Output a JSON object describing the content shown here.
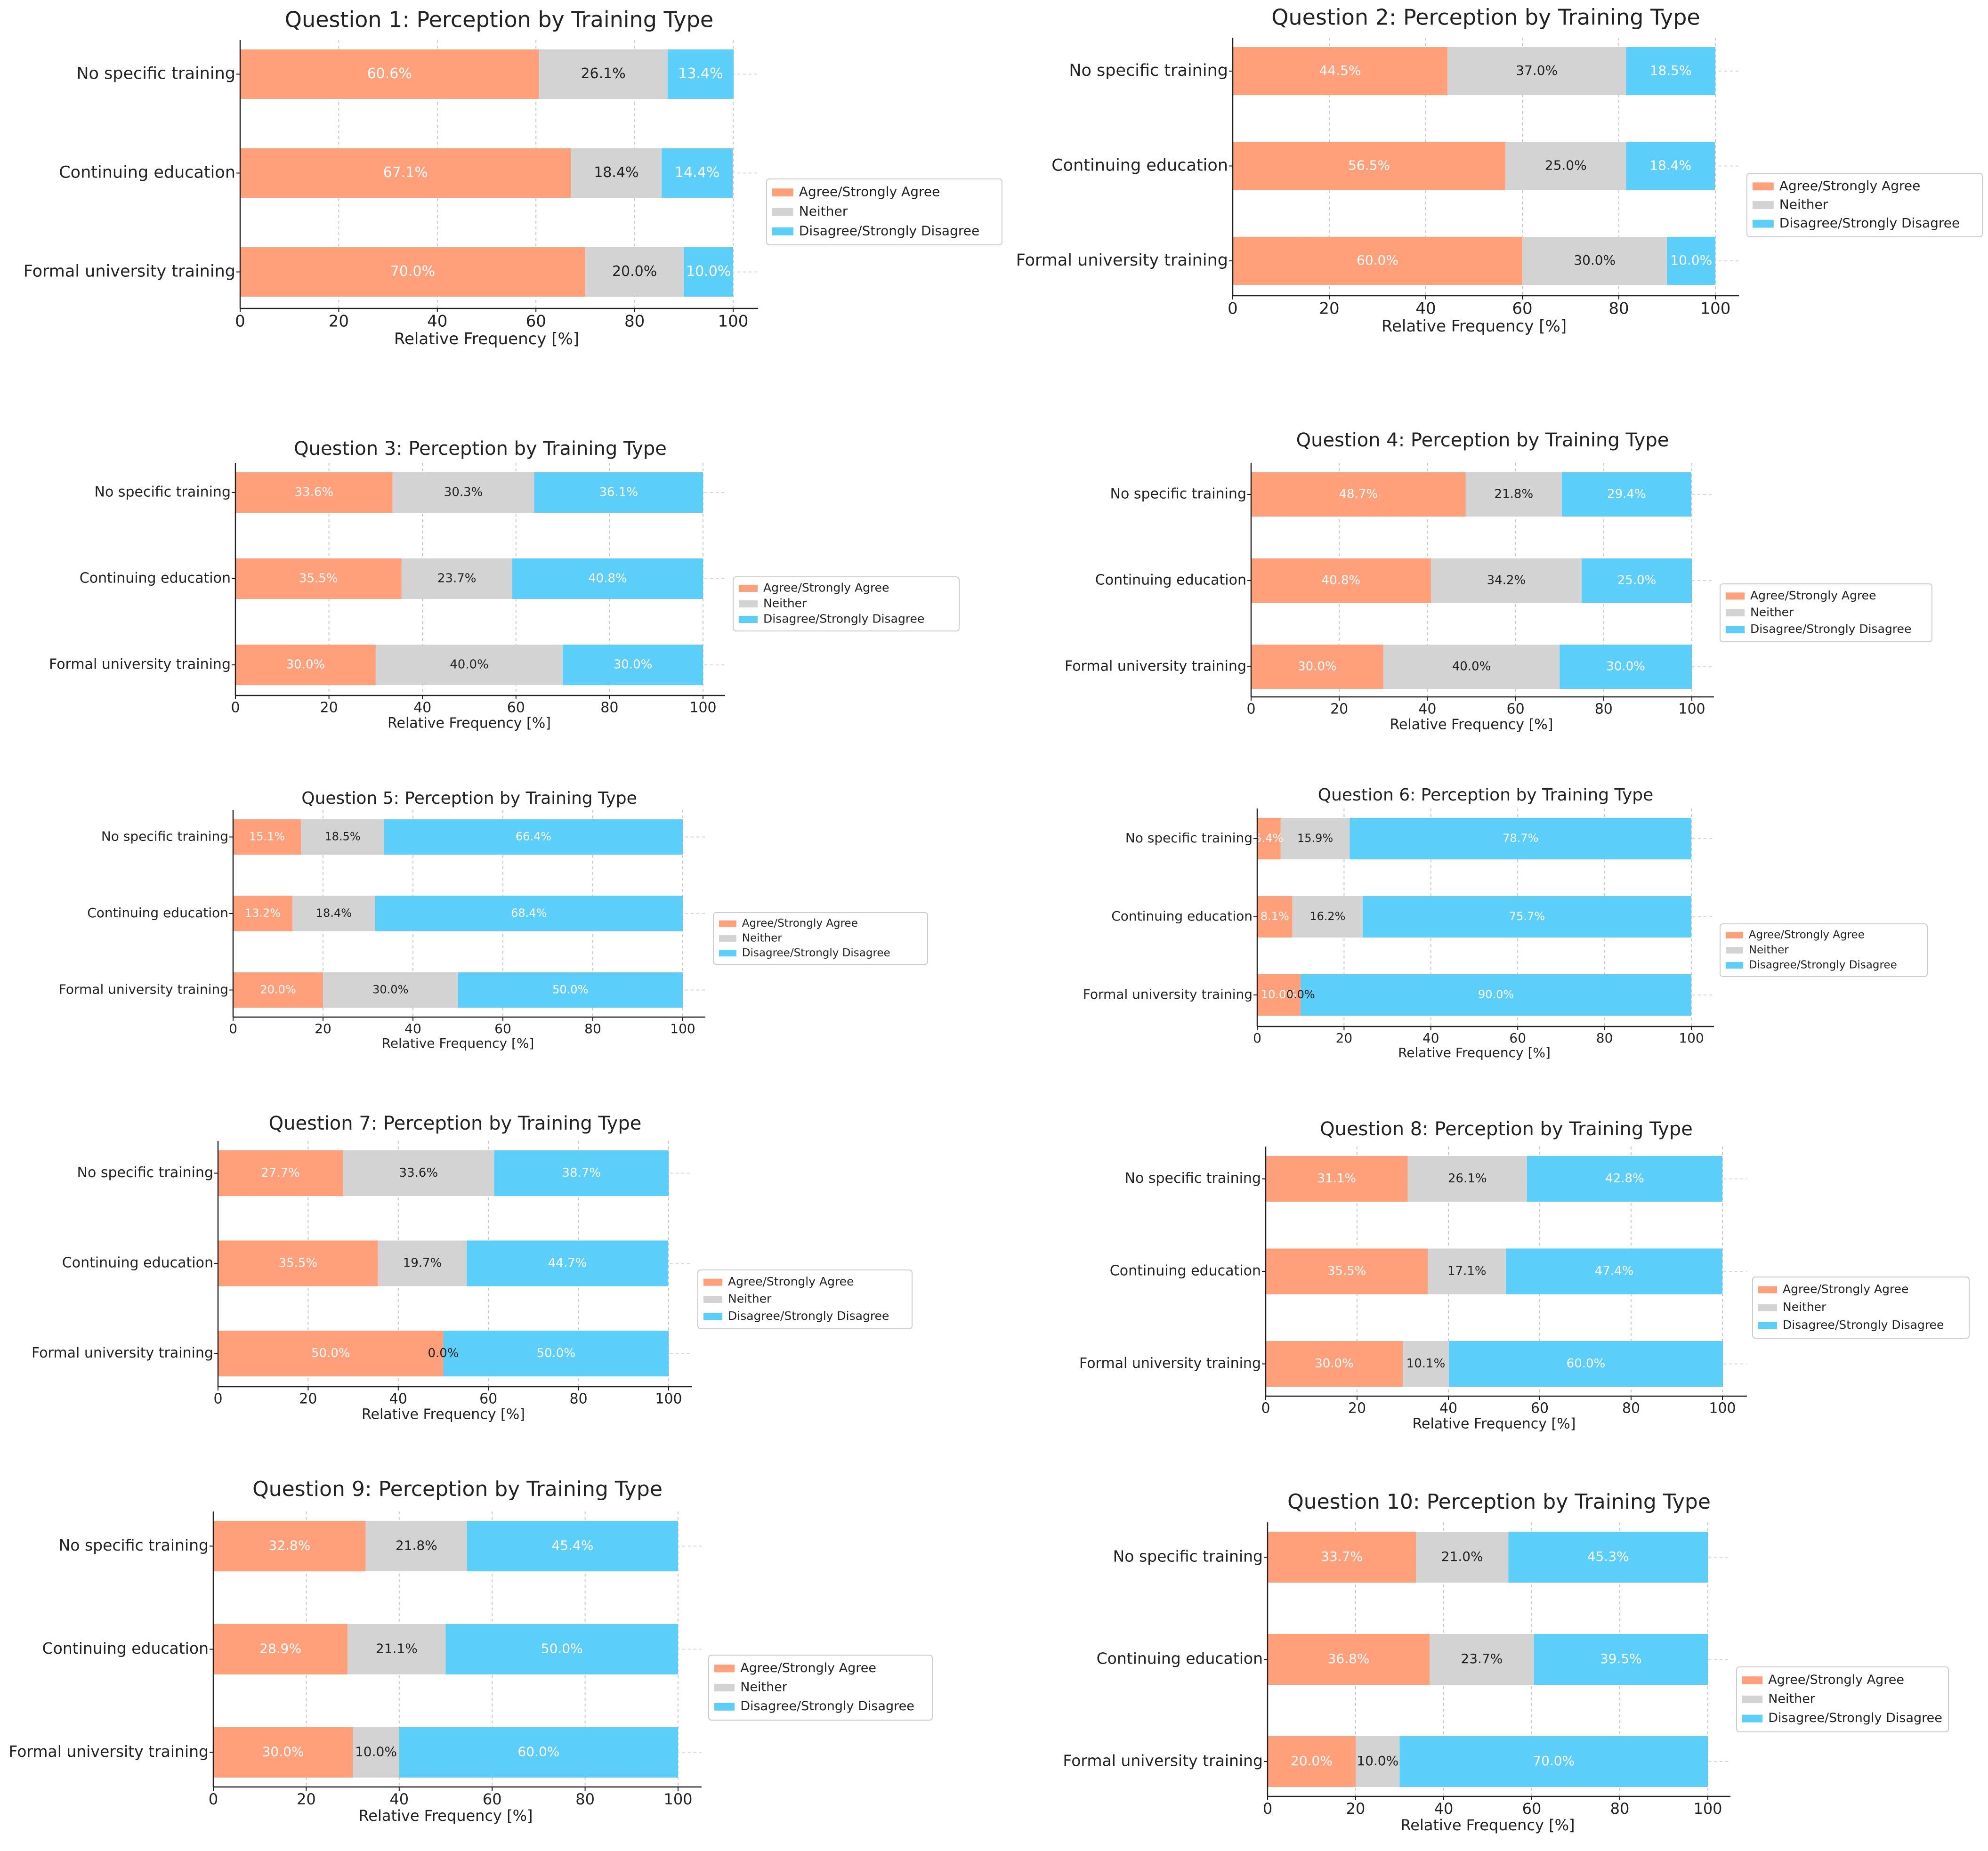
{
  "common": {
    "categories": [
      "No specific training",
      "Continuing education",
      "Formal university training"
    ],
    "legend": [
      "Agree/Strongly Agree",
      "Neither",
      "Disagree/Strongly Disagree"
    ],
    "xlabel": "Relative Frequency [%]",
    "xlim": [
      0,
      100
    ],
    "xticks": [
      0,
      20,
      40,
      60,
      80,
      100
    ],
    "colors": {
      "agree": "#FFA07A",
      "neither": "#D3D3D3",
      "disagree": "#5BCEFA"
    }
  },
  "chart_data": [
    {
      "type": "bar",
      "orientation": "horizontal",
      "stacked": true,
      "title": "Question 1: Perception by Training Type",
      "series": [
        {
          "name": "Agree/Strongly Agree",
          "values": [
            60.6,
            67.1,
            70.0
          ],
          "labels": [
            "60.6%",
            "67.1%",
            "70.0%"
          ]
        },
        {
          "name": "Neither",
          "values": [
            26.1,
            18.4,
            20.0
          ],
          "labels": [
            "26.1%",
            "18.4%",
            "20.0%"
          ]
        },
        {
          "name": "Disagree/Strongly Disagree",
          "values": [
            13.4,
            14.4,
            10.0
          ],
          "labels": [
            "13.4%",
            "14.4%",
            "10.0%"
          ]
        }
      ]
    },
    {
      "type": "bar",
      "orientation": "horizontal",
      "stacked": true,
      "title": "Question 2: Perception by Training Type",
      "series": [
        {
          "name": "Agree/Strongly Agree",
          "values": [
            44.5,
            56.5,
            60.0
          ],
          "labels": [
            "44.5%",
            "56.5%",
            "60.0%"
          ]
        },
        {
          "name": "Neither",
          "values": [
            37.0,
            25.0,
            30.0
          ],
          "labels": [
            "37.0%",
            "25.0%",
            "30.0%"
          ]
        },
        {
          "name": "Disagree/Strongly Disagree",
          "values": [
            18.5,
            18.4,
            10.0
          ],
          "labels": [
            "18.5%",
            "18.4%",
            "10.0%"
          ]
        }
      ]
    },
    {
      "type": "bar",
      "orientation": "horizontal",
      "stacked": true,
      "title": "Question 3: Perception by Training Type",
      "series": [
        {
          "name": "Agree/Strongly Agree",
          "values": [
            33.6,
            35.5,
            30.0
          ],
          "labels": [
            "33.6%",
            "35.5%",
            "30.0%"
          ]
        },
        {
          "name": "Neither",
          "values": [
            30.3,
            23.7,
            40.0
          ],
          "labels": [
            "30.3%",
            "23.7%",
            "40.0%"
          ]
        },
        {
          "name": "Disagree/Strongly Disagree",
          "values": [
            36.1,
            40.8,
            30.0
          ],
          "labels": [
            "36.1%",
            "40.8%",
            "30.0%"
          ]
        }
      ]
    },
    {
      "type": "bar",
      "orientation": "horizontal",
      "stacked": true,
      "title": "Question 4: Perception by Training Type",
      "series": [
        {
          "name": "Agree/Strongly Agree",
          "values": [
            48.7,
            40.8,
            30.0
          ],
          "labels": [
            "48.7%",
            "40.8%",
            "30.0%"
          ]
        },
        {
          "name": "Neither",
          "values": [
            21.8,
            34.2,
            40.0
          ],
          "labels": [
            "21.8%",
            "34.2%",
            "40.0%"
          ]
        },
        {
          "name": "Disagree/Strongly Disagree",
          "values": [
            29.4,
            25.0,
            30.0
          ],
          "labels": [
            "29.4%",
            "25.0%",
            "30.0%"
          ]
        }
      ]
    },
    {
      "type": "bar",
      "orientation": "horizontal",
      "stacked": true,
      "title": "Question 5: Perception by Training Type",
      "series": [
        {
          "name": "Agree/Strongly Agree",
          "values": [
            15.1,
            13.2,
            20.0
          ],
          "labels": [
            "15.1%",
            "13.2%",
            "20.0%"
          ]
        },
        {
          "name": "Neither",
          "values": [
            18.5,
            18.4,
            30.0
          ],
          "labels": [
            "18.5%",
            "18.4%",
            "30.0%"
          ]
        },
        {
          "name": "Disagree/Strongly Disagree",
          "values": [
            66.4,
            68.4,
            50.0
          ],
          "labels": [
            "66.4%",
            "68.4%",
            "50.0%"
          ]
        }
      ]
    },
    {
      "type": "bar",
      "orientation": "horizontal",
      "stacked": true,
      "title": "Question 6: Perception by Training Type",
      "series": [
        {
          "name": "Agree/Strongly Agree",
          "values": [
            5.4,
            8.1,
            10.0
          ],
          "labels": [
            "5.4%",
            "8.1%",
            "10.0%"
          ]
        },
        {
          "name": "Neither",
          "values": [
            15.9,
            16.2,
            0.0
          ],
          "labels": [
            "15.9%",
            "16.2%",
            "0.0%"
          ]
        },
        {
          "name": "Disagree/Strongly Disagree",
          "values": [
            78.7,
            75.7,
            90.0
          ],
          "labels": [
            "78.7%",
            "75.7%",
            "90.0%"
          ]
        }
      ]
    },
    {
      "type": "bar",
      "orientation": "horizontal",
      "stacked": true,
      "title": "Question 7: Perception by Training Type",
      "series": [
        {
          "name": "Agree/Strongly Agree",
          "values": [
            27.7,
            35.5,
            50.0
          ],
          "labels": [
            "27.7%",
            "35.5%",
            "50.0%"
          ]
        },
        {
          "name": "Neither",
          "values": [
            33.6,
            19.7,
            0.0
          ],
          "labels": [
            "33.6%",
            "19.7%",
            "0.0%"
          ]
        },
        {
          "name": "Disagree/Strongly Disagree",
          "values": [
            38.7,
            44.7,
            50.0
          ],
          "labels": [
            "38.7%",
            "44.7%",
            "50.0%"
          ]
        }
      ]
    },
    {
      "type": "bar",
      "orientation": "horizontal",
      "stacked": true,
      "title": "Question 8: Perception by Training Type",
      "series": [
        {
          "name": "Agree/Strongly Agree",
          "values": [
            31.1,
            35.5,
            30.0
          ],
          "labels": [
            "31.1%",
            "35.5%",
            "30.0%"
          ]
        },
        {
          "name": "Neither",
          "values": [
            26.1,
            17.1,
            10.1
          ],
          "labels": [
            "26.1%",
            "17.1%",
            "10.1%"
          ]
        },
        {
          "name": "Disagree/Strongly Disagree",
          "values": [
            42.8,
            47.4,
            60.0
          ],
          "labels": [
            "42.8%",
            "47.4%",
            "60.0%"
          ]
        }
      ]
    },
    {
      "type": "bar",
      "orientation": "horizontal",
      "stacked": true,
      "title": "Question 9: Perception by Training Type",
      "series": [
        {
          "name": "Agree/Strongly Agree",
          "values": [
            32.8,
            28.9,
            30.0
          ],
          "labels": [
            "32.8%",
            "28.9%",
            "30.0%"
          ]
        },
        {
          "name": "Neither",
          "values": [
            21.8,
            21.1,
            10.0
          ],
          "labels": [
            "21.8%",
            "21.1%",
            "10.0%"
          ]
        },
        {
          "name": "Disagree/Strongly Disagree",
          "values": [
            45.4,
            50.0,
            60.0
          ],
          "labels": [
            "45.4%",
            "50.0%",
            "60.0%"
          ]
        }
      ]
    },
    {
      "type": "bar",
      "orientation": "horizontal",
      "stacked": true,
      "title": "Question 10: Perception by Training Type",
      "series": [
        {
          "name": "Agree/Strongly Agree",
          "values": [
            33.7,
            36.8,
            20.0
          ],
          "labels": [
            "33.7%",
            "36.8%",
            "20.0%"
          ]
        },
        {
          "name": "Neither",
          "values": [
            21.0,
            23.7,
            10.0
          ],
          "labels": [
            "21.0%",
            "23.7%",
            "10.0%"
          ]
        },
        {
          "name": "Disagree/Strongly Disagree",
          "values": [
            45.3,
            39.5,
            70.0
          ],
          "labels": [
            "45.3%",
            "39.5%",
            "70.0%"
          ]
        }
      ]
    }
  ]
}
